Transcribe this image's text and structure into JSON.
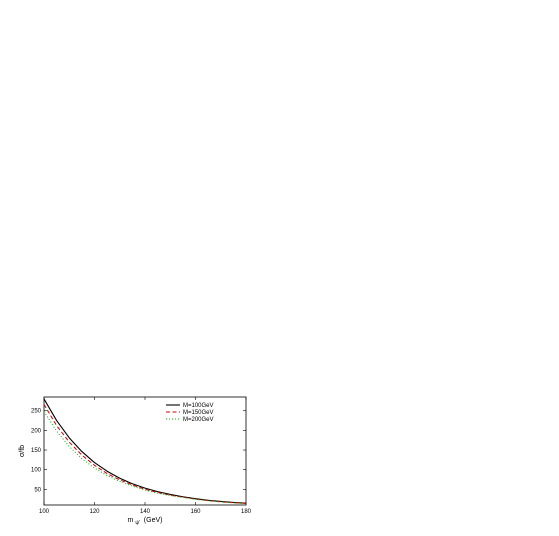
{
  "chart_data": {
    "type": "line",
    "title": "",
    "xlabel": "m",
    "xlabel_sub": "ψ'",
    "xlabel_unit": "(GeV)",
    "ylabel": "σ/fb",
    "xlim": [
      100,
      180
    ],
    "ylim": [
      10,
      285
    ],
    "x_ticks": [
      100,
      120,
      140,
      160,
      180
    ],
    "y_ticks": [
      50,
      100,
      150,
      200,
      250
    ],
    "grid": false,
    "legend_position": "top-right",
    "x": [
      100,
      105,
      110,
      115,
      120,
      125,
      130,
      135,
      140,
      145,
      150,
      155,
      160,
      165,
      170,
      175,
      180
    ],
    "series": [
      {
        "name": "M=100GeV",
        "color": "#000000",
        "style": "solid",
        "values": [
          280,
          225,
          181,
          146,
          118,
          96,
          78,
          64,
          53,
          44,
          37,
          31,
          26,
          22,
          19,
          16.5,
          14.5
        ]
      },
      {
        "name": "M=150GeV",
        "color": "#d00000",
        "style": "dashed",
        "values": [
          266,
          212,
          170,
          137,
          111,
          90,
          74,
          61,
          50,
          42,
          35,
          30,
          25,
          21,
          18,
          16,
          14
        ]
      },
      {
        "name": "M=200GeV",
        "color": "#00b000",
        "style": "dotted",
        "values": [
          248,
          198,
          159,
          128,
          104,
          85,
          70,
          58,
          48,
          40,
          34,
          29,
          24.5,
          21,
          18,
          15.5,
          13.5
        ]
      }
    ]
  }
}
